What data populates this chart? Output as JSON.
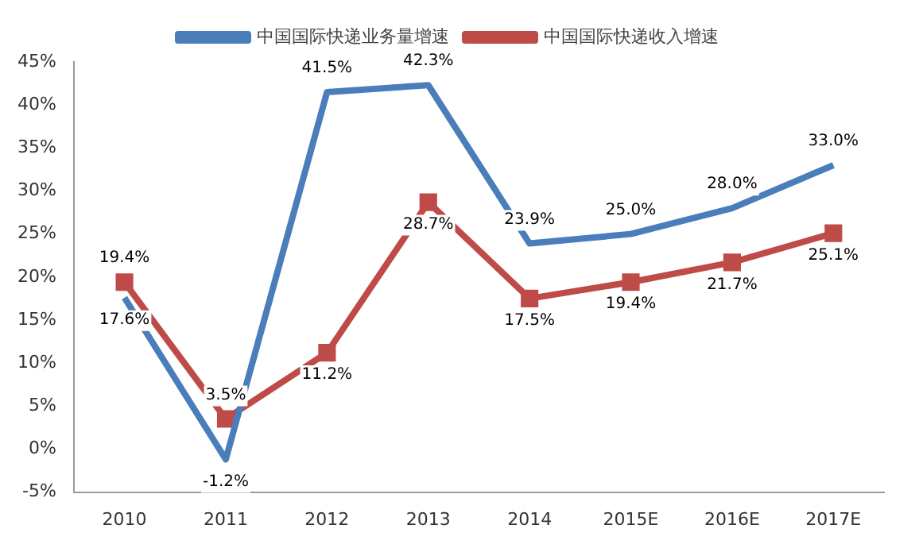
{
  "chart_data": {
    "type": "line",
    "categories": [
      "2010",
      "2011",
      "2012",
      "2013",
      "2014",
      "2015E",
      "2016E",
      "2017E"
    ],
    "series": [
      {
        "name": "中国国际快递业务量增速",
        "color": "#4a7ebb",
        "marker": "none",
        "values": [
          17.6,
          -1.2,
          41.5,
          42.3,
          23.9,
          25.0,
          28.0,
          33.0
        ],
        "value_labels": [
          "17.6%",
          "-1.2%",
          "41.5%",
          "42.3%",
          "23.9%",
          "25.0%",
          "28.0%",
          "33.0%"
        ]
      },
      {
        "name": "中国国际快递收入增速",
        "color": "#be4b48",
        "marker": "square",
        "values": [
          19.4,
          3.5,
          11.2,
          28.7,
          17.5,
          19.4,
          21.7,
          25.1
        ],
        "value_labels": [
          "19.4%",
          "3.5%",
          "11.2%",
          "28.7%",
          "17.5%",
          "19.4%",
          "21.7%",
          "25.1%"
        ]
      }
    ],
    "ylim": [
      -5,
      45
    ],
    "yticks": [
      {
        "value": -5,
        "label": "-5%"
      },
      {
        "value": 0,
        "label": "0%"
      },
      {
        "value": 5,
        "label": "5%"
      },
      {
        "value": 10,
        "label": "10%"
      },
      {
        "value": 15,
        "label": "15%"
      },
      {
        "value": 20,
        "label": "20%"
      },
      {
        "value": 25,
        "label": "25%"
      },
      {
        "value": 30,
        "label": "30%"
      },
      {
        "value": 35,
        "label": "35%"
      },
      {
        "value": 40,
        "label": "40%"
      },
      {
        "value": 45,
        "label": "45%"
      }
    ],
    "grid": false,
    "legend": "top",
    "line_style": "solid"
  }
}
